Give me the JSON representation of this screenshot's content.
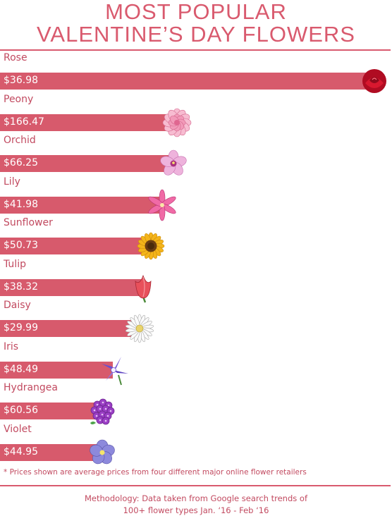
{
  "title": {
    "line1": "MOST POPULAR",
    "line2": "VALENTINE’S DAY FLOWERS"
  },
  "chart_data": {
    "type": "bar",
    "orientation": "horizontal",
    "categories": [
      "Rose",
      "Peony",
      "Orchid",
      "Lily",
      "Sunflower",
      "Tulip",
      "Daisy",
      "Iris",
      "Hydrangea",
      "Violet"
    ],
    "prices": [
      "$36.98",
      "$166.47",
      "$66.25",
      "$41.98",
      "$50.73",
      "$38.32",
      "$29.99",
      "$48.49",
      "$60.56",
      "$44.95"
    ],
    "popularity": [
      100,
      47,
      46,
      43,
      40,
      38,
      37,
      30,
      27,
      27
    ],
    "bar_color": "#d75a6c",
    "flowers": [
      {
        "name": "rose-icon",
        "color": "#c8102e"
      },
      {
        "name": "peony-icon",
        "color": "#f2a7c3"
      },
      {
        "name": "orchid-icon",
        "color": "#e7a3d6"
      },
      {
        "name": "lily-icon",
        "color": "#e85a9b"
      },
      {
        "name": "sunflower-icon",
        "color": "#f4b41a"
      },
      {
        "name": "tulip-icon",
        "color": "#e8505b"
      },
      {
        "name": "daisy-icon",
        "color": "#f4f4f4"
      },
      {
        "name": "iris-icon",
        "color": "#6a4fcf"
      },
      {
        "name": "hydrangea-icon",
        "color": "#9b3fc5"
      },
      {
        "name": "violet-icon",
        "color": "#8a86d9"
      }
    ]
  },
  "footnote": "* Prices shown are average prices from four different major online flower retailers",
  "methodology": {
    "line1": "Methodology: Data taken from Google search trends of",
    "line2": "100+ flower types Jan. ‘16 - Feb ‘16"
  }
}
